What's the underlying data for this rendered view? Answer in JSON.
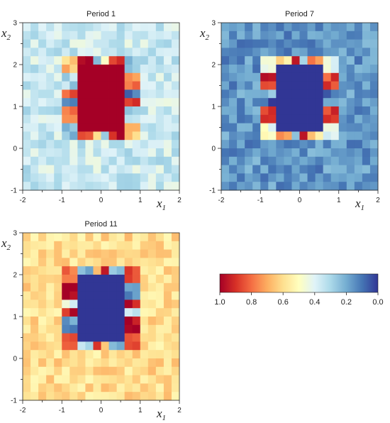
{
  "chart_data": [
    {
      "type": "heatmap",
      "title": "Period 1",
      "xlabel": "x1",
      "ylabel": "x2",
      "xlim": [
        -2,
        2
      ],
      "ylim": [
        -1,
        3
      ],
      "xticks": [
        "-2",
        "-1",
        "0",
        "1",
        "2"
      ],
      "yticks": [
        "-1",
        "0",
        "1",
        "2",
        "3"
      ],
      "grid": false,
      "colormap": "RdYlBu",
      "background_value": 0.36,
      "ring_values": [
        0.1,
        0.75,
        0.25,
        0.9,
        0.55,
        0.2,
        0.95,
        0.65,
        0.3,
        0.85
      ],
      "core_value": 1.0
    },
    {
      "type": "heatmap",
      "title": "Period 7",
      "xlabel": "x1",
      "ylabel": "x2",
      "xlim": [
        -2,
        2
      ],
      "ylim": [
        -1,
        3
      ],
      "xticks": [
        "-2",
        "-1",
        "0",
        "1",
        "2"
      ],
      "yticks": [
        "-1",
        "0",
        "1",
        "2",
        "3"
      ],
      "grid": false,
      "colormap": "RdYlBu",
      "background_value": 0.16,
      "ring_values": [
        0.05,
        0.85,
        0.45,
        0.75,
        0.3,
        0.95,
        0.6,
        0.4,
        0.9,
        0.2
      ],
      "core_value": 0.0
    },
    {
      "type": "heatmap",
      "title": "Period 11",
      "xlabel": "x1",
      "ylabel": "x2",
      "xlim": [
        -2,
        2
      ],
      "ylim": [
        -1,
        3
      ],
      "xticks": [
        "-2",
        "-1",
        "0",
        "1",
        "2"
      ],
      "yticks": [
        "-1",
        "0",
        "1",
        "2",
        "3"
      ],
      "grid": false,
      "colormap": "RdYlBu",
      "background_value": 0.6,
      "ring_values": [
        0.95,
        0.15,
        0.85,
        0.3,
        0.9,
        0.7,
        0.2,
        0.8,
        1.0,
        0.4
      ],
      "core_value": 0.0
    }
  ],
  "colorbar": {
    "colormap": "RdYlBu",
    "range": [
      1.0,
      0.0
    ],
    "ticks": [
      "1.0",
      "0.8",
      "0.6",
      "0.4",
      "0.2",
      "0.0"
    ],
    "tick_values": [
      1.0,
      0.8,
      0.6,
      0.4,
      0.2,
      0.0
    ]
  }
}
